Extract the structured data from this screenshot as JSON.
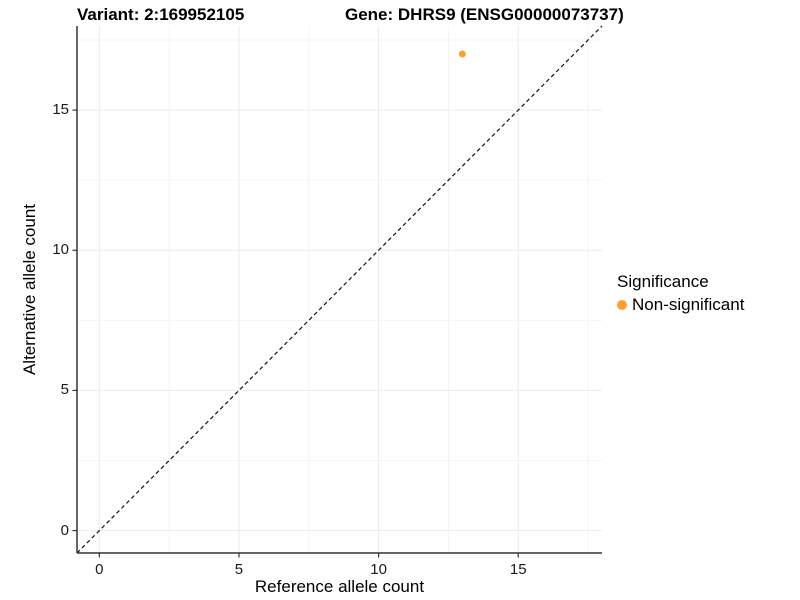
{
  "header": {
    "variant_title": "Variant: 2:169952105",
    "gene_title": "Gene: DHRS9 (ENSG00000073737)"
  },
  "chart_data": {
    "type": "scatter",
    "title_left": "Variant: 2:169952105",
    "title_right": "Gene: DHRS9 (ENSG00000073737)",
    "xlabel": "Reference allele count",
    "ylabel": "Alternative allele count",
    "xlim": [
      -0.8,
      18.0
    ],
    "ylim": [
      -0.8,
      18.0
    ],
    "x_ticks": [
      0,
      5,
      10,
      15
    ],
    "y_ticks": [
      0,
      5,
      10,
      15
    ],
    "x_minor_ticks": [
      2.5,
      7.5,
      12.5,
      17.5
    ],
    "y_minor_ticks": [
      2.5,
      7.5,
      12.5,
      17.5
    ],
    "grid": true,
    "points": [
      {
        "x": 13,
        "y": 17,
        "series": "Non-significant",
        "color": "#FFA030"
      }
    ],
    "reference_line": {
      "type": "identity y=x",
      "style": "dashed",
      "color": "#111111"
    },
    "legend": {
      "title": "Significance",
      "position": "right",
      "items": [
        {
          "label": "Non-significant",
          "color": "#FFA030"
        }
      ]
    }
  },
  "colors": {
    "background": "#ffffff",
    "axis_line": "#333333",
    "tick": "#333333",
    "grid_major": "#ebebeb",
    "grid_minor": "#f4f4f4",
    "point": "#FFA030",
    "text": "#000000"
  }
}
